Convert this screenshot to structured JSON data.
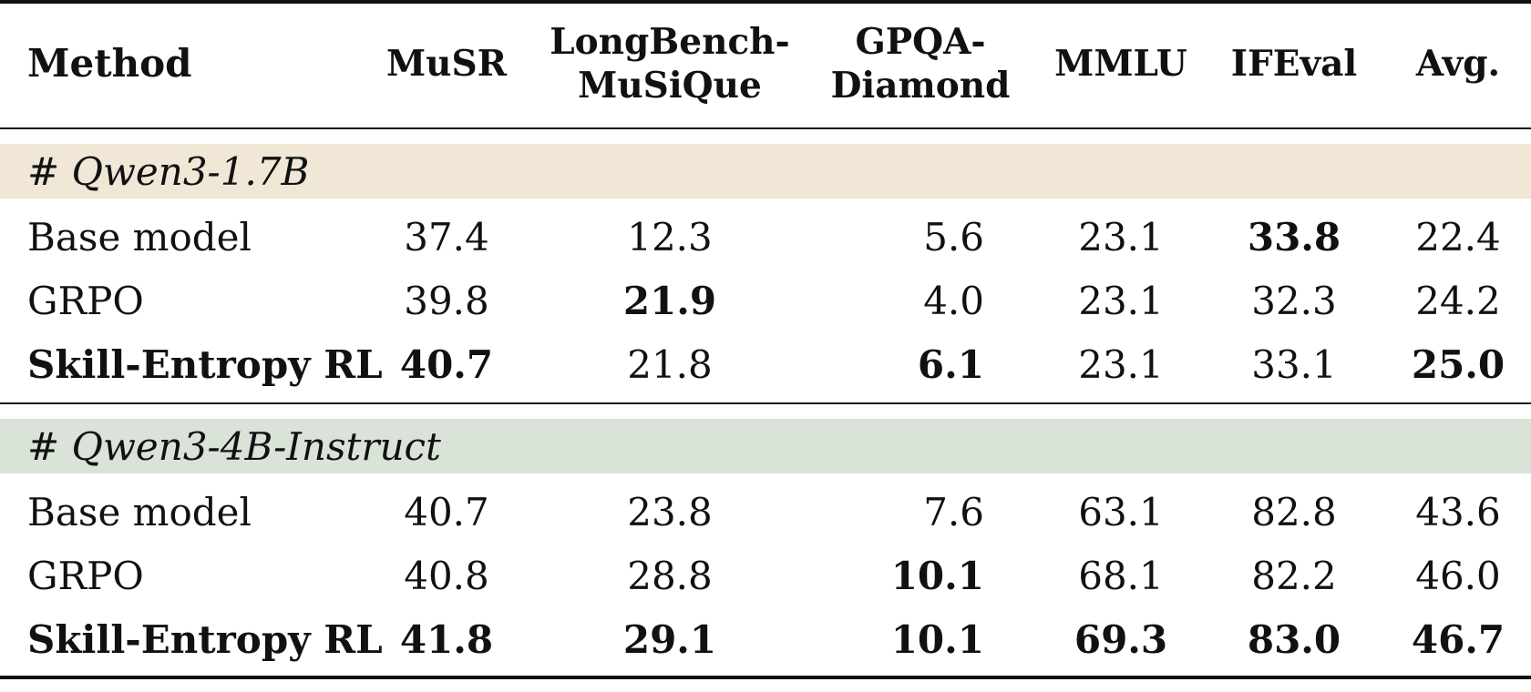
{
  "table": {
    "headers": {
      "method": "Method",
      "musr": "MuSR",
      "longbench_line1": "LongBench-",
      "longbench_line2": "MuSiQue",
      "gpqa_line1": "GPQA-",
      "gpqa_line2": "Diamond",
      "mmlu": "MMLU",
      "ifeval": "IFEval",
      "avg": "Avg."
    },
    "groups": [
      {
        "label": "# Qwen3-1.7B",
        "color": "#f1e7d7",
        "rows": [
          {
            "method": "Base model",
            "musr": "37.4",
            "longbench": "12.3",
            "gpqa": "5.6",
            "mmlu": "23.1",
            "ifeval": "33.8",
            "avg": "22.4"
          },
          {
            "method": "GRPO",
            "musr": "39.8",
            "longbench": "21.9",
            "gpqa": "4.0",
            "mmlu": "23.1",
            "ifeval": "32.3",
            "avg": "24.2"
          },
          {
            "method": "Skill-Entropy RL",
            "musr": "40.7",
            "longbench": "21.8",
            "gpqa": "6.1",
            "mmlu": "23.1",
            "ifeval": "33.1",
            "avg": "25.0"
          }
        ]
      },
      {
        "label": "# Qwen3-4B-Instruct",
        "color": "#d9e3d8",
        "rows": [
          {
            "method": "Base model",
            "musr": "40.7",
            "longbench": "23.8",
            "gpqa": "7.6",
            "mmlu": "63.1",
            "ifeval": "82.8",
            "avg": "43.6"
          },
          {
            "method": "GRPO",
            "musr": "40.8",
            "longbench": "28.8",
            "gpqa": "10.1",
            "mmlu": "68.1",
            "ifeval": "82.2",
            "avg": "46.0"
          },
          {
            "method": "Skill-Entropy RL",
            "musr": "41.8",
            "longbench": "29.1",
            "gpqa": "10.1",
            "mmlu": "69.3",
            "ifeval": "83.0",
            "avg": "46.7"
          }
        ]
      }
    ]
  }
}
